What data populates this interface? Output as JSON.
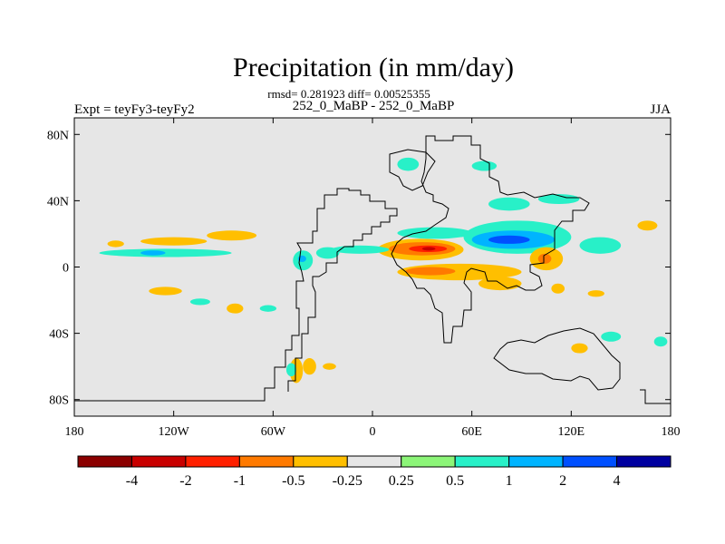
{
  "chart_data": {
    "type": "heatmap",
    "title": "Precipitation (in mm/day)",
    "subtitle": "rmsd= 0.281923 diff= 0.00525355",
    "case_label": "252_0_MaBP - 252_0_MaBP",
    "left_label": "Expt = teyFy3-teyFy2",
    "right_label": "JJA",
    "x_range": [
      -180,
      180
    ],
    "y_range": [
      -90,
      90
    ],
    "x_ticks": [
      {
        "value": -180,
        "label": "180"
      },
      {
        "value": -120,
        "label": "120W"
      },
      {
        "value": -60,
        "label": "60W"
      },
      {
        "value": 0,
        "label": "0"
      },
      {
        "value": 60,
        "label": "60E"
      },
      {
        "value": 120,
        "label": "120E"
      },
      {
        "value": 180,
        "label": "180"
      }
    ],
    "y_ticks": [
      {
        "value": 80,
        "label": "80N"
      },
      {
        "value": 40,
        "label": "40N"
      },
      {
        "value": 0,
        "label": "0"
      },
      {
        "value": -40,
        "label": "40S"
      },
      {
        "value": -80,
        "label": "80S"
      }
    ],
    "colorbar": {
      "colors": [
        "#8b0000",
        "#c80000",
        "#ff2000",
        "#ff7a00",
        "#ffbf00",
        "#e6e6e6",
        "#8cf578",
        "#28f0c8",
        "#00b4ff",
        "#0050ff",
        "#0000a0"
      ],
      "labels": [
        "-4",
        "-2",
        "-1",
        "-0.5",
        "-0.25",
        "0.25",
        "0.5",
        "1",
        "2",
        "4"
      ]
    },
    "field_levels": [
      "-4",
      "-2",
      "-1",
      "-0.5",
      "-0.25",
      "0.25",
      "0.5",
      "1",
      "2",
      "4"
    ],
    "regions": [
      {
        "level": -0.25,
        "lon": [
          -160,
          -150
        ],
        "lat": [
          12,
          16
        ]
      },
      {
        "level": -0.25,
        "lon": [
          -140,
          -100
        ],
        "lat": [
          13,
          18
        ]
      },
      {
        "level": -0.25,
        "lon": [
          -100,
          -70
        ],
        "lat": [
          16,
          22
        ]
      },
      {
        "level": 0.5,
        "lon": [
          -165,
          -85
        ],
        "lat": [
          6,
          11
        ]
      },
      {
        "level": 1,
        "lon": [
          -140,
          -125
        ],
        "lat": [
          7,
          10
        ]
      },
      {
        "level": -0.25,
        "lon": [
          -135,
          -115
        ],
        "lat": [
          -17,
          -12
        ]
      },
      {
        "level": 0.5,
        "lon": [
          -110,
          -98
        ],
        "lat": [
          -23,
          -19
        ]
      },
      {
        "level": -0.25,
        "lon": [
          -88,
          -78
        ],
        "lat": [
          -28,
          -22
        ]
      },
      {
        "level": 0.5,
        "lon": [
          -68,
          -58
        ],
        "lat": [
          -27,
          -23
        ]
      },
      {
        "level": 0.5,
        "lon": [
          -48,
          -36
        ],
        "lat": [
          -2,
          10
        ]
      },
      {
        "level": 1,
        "lon": [
          -45,
          -40
        ],
        "lat": [
          3,
          7
        ]
      },
      {
        "level": 0.5,
        "lon": [
          -34,
          -20
        ],
        "lat": [
          5,
          12
        ]
      },
      {
        "level": -0.25,
        "lon": [
          -50,
          -42
        ],
        "lat": [
          -70,
          -55
        ]
      },
      {
        "level": 0.5,
        "lon": [
          -52,
          -46
        ],
        "lat": [
          -66,
          -58
        ]
      },
      {
        "level": -0.25,
        "lon": [
          -42,
          -34
        ],
        "lat": [
          -65,
          -55
        ]
      },
      {
        "level": -0.25,
        "lon": [
          -30,
          -22
        ],
        "lat": [
          -62,
          -58
        ]
      },
      {
        "level": 0.5,
        "lon": [
          15,
          60
        ],
        "lat": [
          17,
          24
        ]
      },
      {
        "level": -0.25,
        "lon": [
          3,
          55
        ],
        "lat": [
          4,
          17
        ]
      },
      {
        "level": -0.5,
        "lon": [
          10,
          50
        ],
        "lat": [
          7,
          15
        ]
      },
      {
        "level": -1,
        "lon": [
          22,
          45
        ],
        "lat": [
          9,
          13
        ]
      },
      {
        "level": -2,
        "lon": [
          30,
          38
        ],
        "lat": [
          10,
          12
        ]
      },
      {
        "level": -0.25,
        "lon": [
          15,
          90
        ],
        "lat": [
          -8,
          2
        ]
      },
      {
        "level": -0.5,
        "lon": [
          20,
          50
        ],
        "lat": [
          -5,
          0
        ]
      },
      {
        "level": 0.5,
        "lon": [
          -25,
          10
        ],
        "lat": [
          8,
          13
        ]
      },
      {
        "level": 0.5,
        "lon": [
          55,
          120
        ],
        "lat": [
          8,
          28
        ]
      },
      {
        "level": 1,
        "lon": [
          60,
          110
        ],
        "lat": [
          11,
          22
        ]
      },
      {
        "level": 2,
        "lon": [
          70,
          95
        ],
        "lat": [
          14,
          19
        ]
      },
      {
        "level": 0.5,
        "lon": [
          70,
          95
        ],
        "lat": [
          34,
          42
        ]
      },
      {
        "level": 0.5,
        "lon": [
          100,
          125
        ],
        "lat": [
          38,
          44
        ]
      },
      {
        "level": -0.25,
        "lon": [
          95,
          115
        ],
        "lat": [
          -2,
          12
        ]
      },
      {
        "level": -0.5,
        "lon": [
          100,
          108
        ],
        "lat": [
          2,
          8
        ]
      },
      {
        "level": -0.25,
        "lon": [
          64,
          90
        ],
        "lat": [
          -14,
          -6
        ]
      },
      {
        "level": -0.25,
        "lon": [
          108,
          116
        ],
        "lat": [
          -16,
          -10
        ]
      },
      {
        "level": 0.5,
        "lon": [
          125,
          150
        ],
        "lat": [
          8,
          18
        ]
      },
      {
        "level": -0.25,
        "lon": [
          160,
          172
        ],
        "lat": [
          22,
          28
        ]
      },
      {
        "level": -0.25,
        "lon": [
          130,
          140
        ],
        "lat": [
          -18,
          -14
        ]
      },
      {
        "level": -0.25,
        "lon": [
          120,
          130
        ],
        "lat": [
          -52,
          -46
        ]
      },
      {
        "level": 0.5,
        "lon": [
          138,
          150
        ],
        "lat": [
          -45,
          -39
        ]
      },
      {
        "level": 0.5,
        "lon": [
          170,
          178
        ],
        "lat": [
          -48,
          -42
        ]
      },
      {
        "level": 0.5,
        "lon": [
          15,
          28
        ],
        "lat": [
          58,
          66
        ]
      },
      {
        "level": 0.5,
        "lon": [
          60,
          75
        ],
        "lat": [
          58,
          64
        ]
      }
    ]
  }
}
